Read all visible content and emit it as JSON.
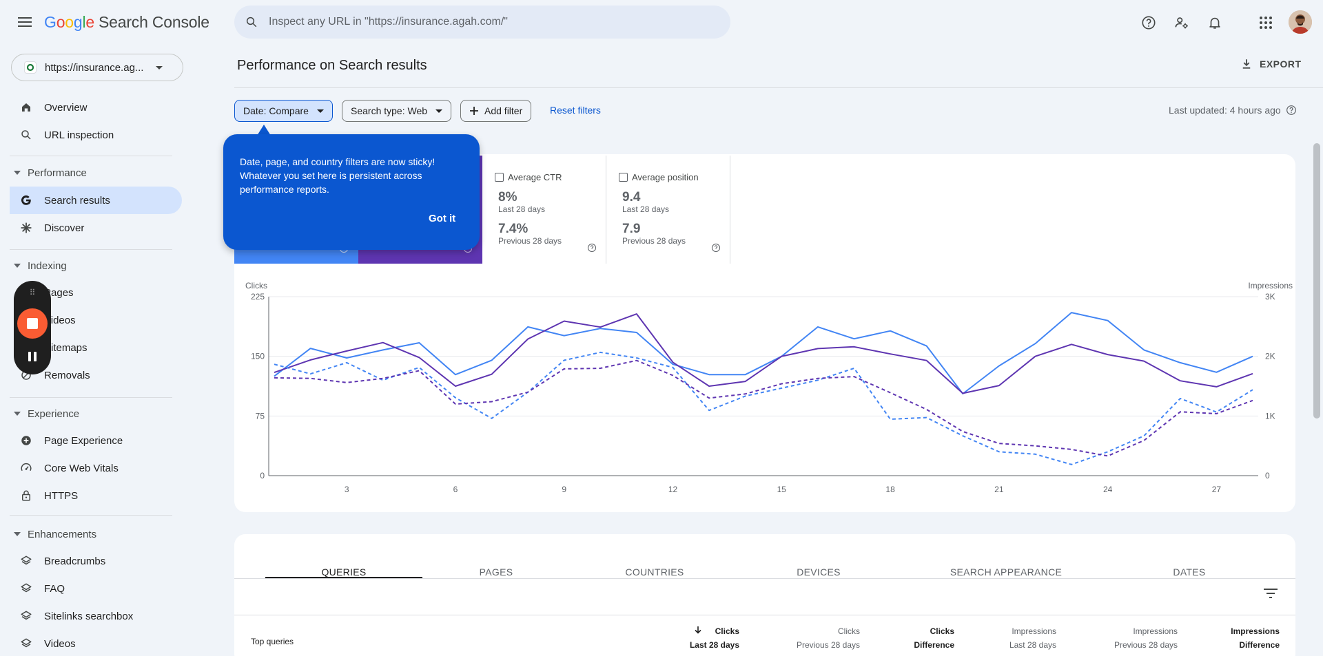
{
  "header": {
    "menu_icon": "hamburger-menu-icon",
    "logo_google": "Google",
    "logo_product": "Search Console",
    "search_placeholder": "Inspect any URL in \"https://insurance.agah.com/\"",
    "icons": [
      "help-icon",
      "user-settings-icon",
      "notifications-icon",
      "apps-grid-icon"
    ]
  },
  "sidebar": {
    "property": "https://insurance.ag...",
    "top_items": [
      {
        "label": "Overview",
        "icon": "home-icon"
      },
      {
        "label": "URL inspection",
        "icon": "search-icon"
      }
    ],
    "sections": [
      {
        "title": "Performance",
        "items": [
          {
            "label": "Search results",
            "icon": "google-g-icon",
            "active": true
          },
          {
            "label": "Discover",
            "icon": "asterisk-icon"
          }
        ]
      },
      {
        "title": "Indexing",
        "items": [
          {
            "label": "Pages",
            "icon": "pages-icon"
          },
          {
            "label": "Videos",
            "icon": "videos-icon"
          },
          {
            "label": "Sitemaps",
            "icon": "sitemap-icon"
          },
          {
            "label": "Removals",
            "icon": "removals-icon"
          }
        ]
      },
      {
        "title": "Experience",
        "items": [
          {
            "label": "Page Experience",
            "icon": "plus-circle-icon"
          },
          {
            "label": "Core Web Vitals",
            "icon": "gauge-icon"
          },
          {
            "label": "HTTPS",
            "icon": "lock-icon"
          }
        ]
      },
      {
        "title": "Enhancements",
        "items": [
          {
            "label": "Breadcrumbs",
            "icon": "layers-icon"
          },
          {
            "label": "FAQ",
            "icon": "layers-icon"
          },
          {
            "label": "Sitelinks searchbox",
            "icon": "layers-icon"
          },
          {
            "label": "Videos",
            "icon": "layers-icon"
          }
        ]
      }
    ]
  },
  "main": {
    "title": "Performance on Search results",
    "export_label": "EXPORT",
    "filters": {
      "date": "Date: Compare",
      "search_type": "Search type: Web",
      "add_filter": "Add filter",
      "reset": "Reset filters",
      "last_updated": "Last updated: 4 hours ago"
    },
    "tooltip": {
      "text": "Date, page, and country filters are now sticky! Whatever you set here is persistent across performance reports.",
      "button": "Got it"
    },
    "metrics": [
      {
        "label": "Average CTR",
        "current": "8%",
        "current_period": "Last 28 days",
        "previous": "7.4%",
        "previous_period": "Previous 28 days"
      },
      {
        "label": "Average position",
        "current": "9.4",
        "current_period": "Last 28 days",
        "previous": "7.9",
        "previous_period": "Previous 28 days"
      }
    ],
    "tabs": [
      "QUERIES",
      "PAGES",
      "COUNTRIES",
      "DEVICES",
      "SEARCH APPEARANCE",
      "DATES"
    ],
    "table": {
      "first_col": "Top queries",
      "columns": [
        {
          "top": "Clicks",
          "bottom": "Last 28 days",
          "sorted": true
        },
        {
          "top": "Clicks",
          "bottom": "Previous 28 days"
        },
        {
          "top": "Clicks",
          "bottom": "Difference"
        },
        {
          "top": "Impressions",
          "bottom": "Last 28 days"
        },
        {
          "top": "Impressions",
          "bottom": "Previous 28 days"
        },
        {
          "top": "Impressions",
          "bottom": "Difference"
        }
      ]
    }
  },
  "colors": {
    "clicks_current": "#4285f4",
    "impressions_current": "#5e35b1",
    "tooltip_bg": "#0b57d0",
    "active_nav": "#d3e3fd"
  },
  "chart_data": {
    "type": "line",
    "ylabel_left": "Clicks",
    "ylabel_right": "Impressions",
    "ylim_left": [
      0,
      225
    ],
    "ylim_right": [
      0,
      3000
    ],
    "left_ticks": [
      "0",
      "75",
      "150",
      "225"
    ],
    "right_ticks": [
      "0",
      "1K",
      "2K",
      "3K"
    ],
    "x_ticks": [
      "3",
      "6",
      "9",
      "12",
      "15",
      "18",
      "21",
      "24",
      "27"
    ],
    "x": [
      1,
      2,
      3,
      4,
      5,
      6,
      7,
      8,
      9,
      10,
      11,
      12,
      13,
      14,
      15,
      16,
      17,
      18,
      19,
      20,
      21,
      22,
      23,
      24,
      25,
      26,
      27,
      28
    ],
    "series": [
      {
        "name": "Clicks (Last 28 days)",
        "axis": "left",
        "style": "solid",
        "color": "#4285f4",
        "values": [
          125,
          160,
          148,
          158,
          167,
          127,
          145,
          187,
          176,
          185,
          180,
          140,
          127,
          127,
          150,
          187,
          172,
          182,
          163,
          103,
          138,
          166,
          205,
          195,
          158,
          142,
          130,
          150
        ]
      },
      {
        "name": "Impressions (Last 28 days)",
        "axis": "right",
        "style": "solid",
        "color": "#5e35b1",
        "values": [
          1730,
          1940,
          2090,
          2230,
          1980,
          1500,
          1700,
          2290,
          2590,
          2490,
          2710,
          1900,
          1500,
          1580,
          2000,
          2130,
          2160,
          2040,
          1930,
          1380,
          1510,
          2000,
          2200,
          2030,
          1920,
          1590,
          1490,
          1710
        ]
      },
      {
        "name": "Clicks (Previous 28 days)",
        "axis": "left",
        "style": "dashed",
        "color": "#4285f4",
        "values": [
          140,
          128,
          142,
          120,
          136,
          98,
          72,
          105,
          145,
          155,
          148,
          136,
          82,
          100,
          110,
          120,
          135,
          71,
          73,
          50,
          30,
          27,
          14,
          30,
          50,
          97,
          80,
          108
        ]
      },
      {
        "name": "Impressions (Previous 28 days)",
        "axis": "right",
        "style": "dashed",
        "color": "#5e35b1",
        "values": [
          1640,
          1630,
          1560,
          1630,
          1760,
          1200,
          1240,
          1400,
          1790,
          1800,
          1930,
          1680,
          1300,
          1370,
          1540,
          1630,
          1660,
          1390,
          1110,
          740,
          540,
          500,
          440,
          330,
          590,
          1070,
          1040,
          1260
        ]
      }
    ],
    "grid": true,
    "legend": "none"
  }
}
